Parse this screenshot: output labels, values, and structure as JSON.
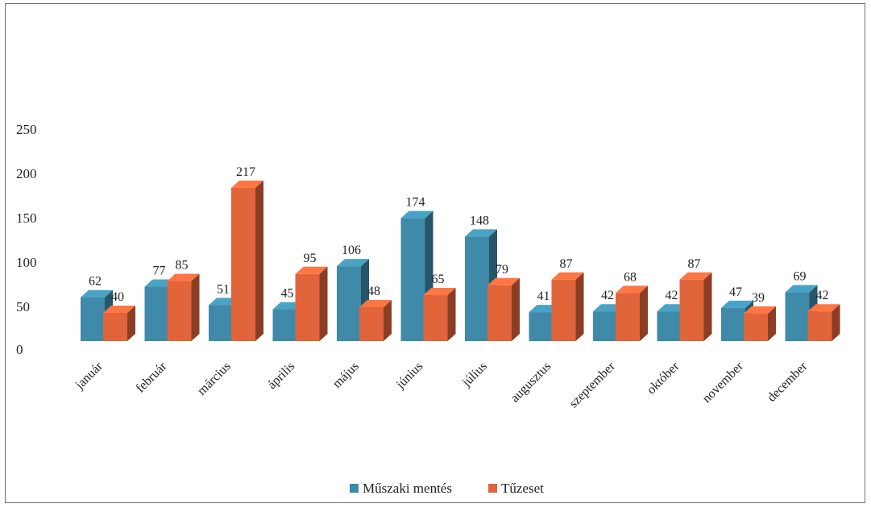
{
  "chart_data": {
    "type": "bar",
    "categories": [
      "január",
      "február",
      "március",
      "április",
      "május",
      "június",
      "július",
      "augusztus",
      "szeptember",
      "október",
      "november",
      "december"
    ],
    "series": [
      {
        "name": "Műszaki mentés",
        "values": [
          62,
          77,
          51,
          45,
          106,
          174,
          148,
          41,
          42,
          42,
          47,
          69
        ],
        "color": "#3e8aa8"
      },
      {
        "name": "Tűzeset",
        "values": [
          40,
          85,
          217,
          95,
          48,
          65,
          79,
          87,
          68,
          87,
          39,
          42
        ],
        "color": "#e2643a"
      }
    ],
    "y_ticks": [
      "0",
      "50",
      "100",
      "150",
      "200",
      "250"
    ],
    "ylim": [
      0,
      250
    ],
    "style": "3d-column",
    "grid": false,
    "legend_position": "bottom"
  }
}
